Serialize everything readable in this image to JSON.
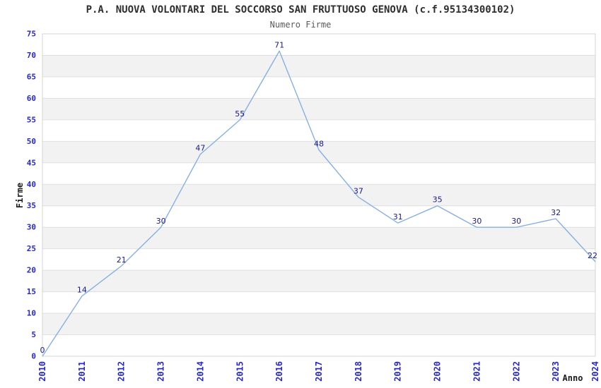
{
  "header": {
    "title": "P.A. NUOVA VOLONTARI DEL SOCCORSO SAN FRUTTUOSO GENOVA (c.f.95134300102)",
    "subtitle": "Numero Firme"
  },
  "chart_data": {
    "type": "line",
    "title": "Numero Firme",
    "categories": [
      "2010",
      "2011",
      "2012",
      "2013",
      "2014",
      "2015",
      "2016",
      "2017",
      "2018",
      "2019",
      "2020",
      "2021",
      "2022",
      "2023",
      "2024"
    ],
    "values": [
      0,
      14,
      21,
      30,
      47,
      55,
      71,
      48,
      37,
      31,
      35,
      30,
      30,
      32,
      22
    ],
    "xlabel": "Anno",
    "ylabel": "Firme",
    "ylim": [
      0,
      75
    ],
    "ytick_step": 5,
    "yticks": [
      0,
      5,
      10,
      15,
      20,
      25,
      30,
      35,
      40,
      45,
      50,
      55,
      60,
      65,
      70,
      75
    ],
    "grid": true,
    "alternating_bands": true,
    "legend": false,
    "data_labels_visible": true,
    "colors": {
      "line": "#86b0e2",
      "data_label": "#1a1a86",
      "tick_label": "#2727cc",
      "band": "#f2f2f2",
      "gridline": "#e0e0e0",
      "plot_border": "#d4d4d4",
      "axis_title": "#1a1a1a",
      "plot_background": "#ffffff"
    }
  }
}
